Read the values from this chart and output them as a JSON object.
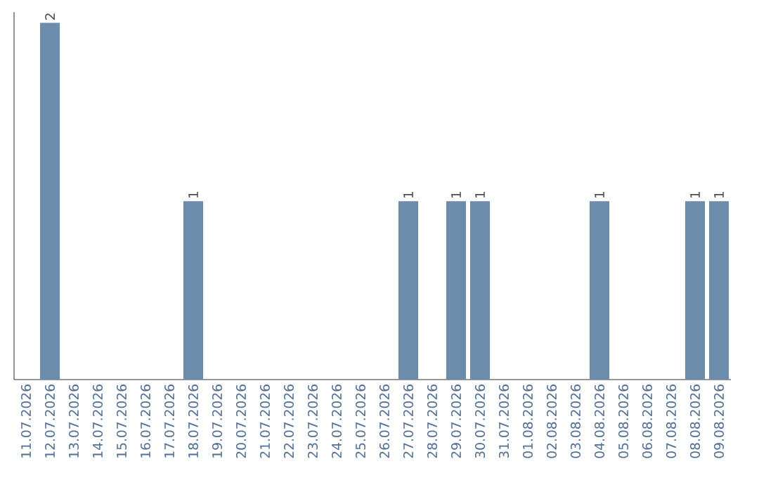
{
  "chart_data": {
    "type": "bar",
    "categories": [
      "11.07.2026",
      "12.07.2026",
      "13.07.2026",
      "14.07.2026",
      "15.07.2026",
      "16.07.2026",
      "17.07.2026",
      "18.07.2026",
      "19.07.2026",
      "20.07.2026",
      "21.07.2026",
      "22.07.2026",
      "23.07.2026",
      "24.07.2026",
      "25.07.2026",
      "26.07.2026",
      "27.07.2026",
      "28.07.2026",
      "29.07.2026",
      "30.07.2026",
      "31.07.2026",
      "01.08.2026",
      "02.08.2026",
      "03.08.2026",
      "04.08.2026",
      "05.08.2026",
      "06.08.2026",
      "07.08.2026",
      "08.08.2026",
      "09.08.2026"
    ],
    "values": [
      0,
      2,
      0,
      0,
      0,
      0,
      0,
      1,
      0,
      0,
      0,
      0,
      0,
      0,
      0,
      0,
      1,
      0,
      1,
      1,
      0,
      0,
      0,
      0,
      1,
      0,
      0,
      0,
      1,
      1
    ],
    "value_labels": [
      null,
      "2",
      null,
      null,
      null,
      null,
      null,
      "1",
      null,
      null,
      null,
      null,
      null,
      null,
      null,
      null,
      "1",
      null,
      "1",
      "1",
      null,
      null,
      null,
      null,
      "1",
      null,
      null,
      null,
      "1",
      "1"
    ],
    "color": "#6c8cab"
  }
}
